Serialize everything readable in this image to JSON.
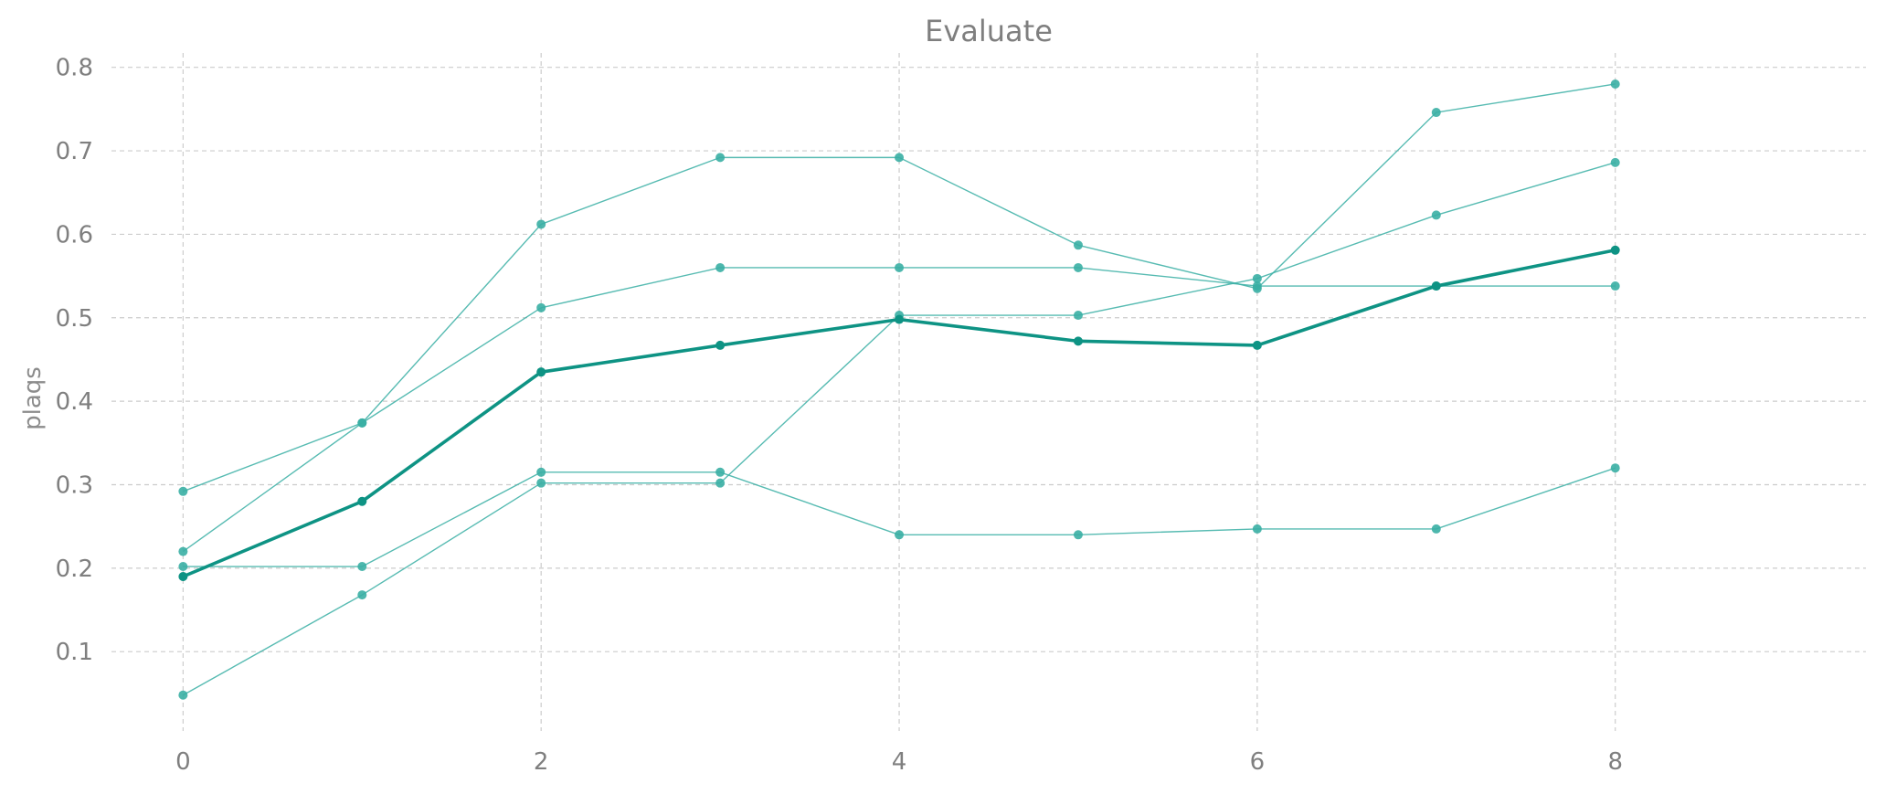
{
  "chart_data": {
    "type": "line",
    "title": "Evaluate",
    "xlabel": "",
    "ylabel": "plaqs",
    "x": [
      0,
      1,
      2,
      3,
      4,
      5,
      6,
      7,
      8
    ],
    "xlim": [
      -0.4,
      9.4
    ],
    "ylim": [
      0.005,
      0.815
    ],
    "xticks": [
      0,
      2,
      4,
      6,
      8
    ],
    "yticks": [
      0.1,
      0.2,
      0.3,
      0.4,
      0.5,
      0.6,
      0.7,
      0.8
    ],
    "xtick_labels": [
      "0",
      "2",
      "4",
      "6",
      "8"
    ],
    "ytick_labels": [
      "0.1",
      "0.2",
      "0.3",
      "0.4",
      "0.5",
      "0.6",
      "0.7",
      "0.8"
    ],
    "grid": true,
    "legend": "none",
    "colors": {
      "thin_series": "#3aafa4",
      "mean_series": "#0e9384",
      "grid": "#cccccc",
      "text": "#7f7f7f"
    },
    "series": [
      {
        "values": [
          0.292,
          0.374,
          0.612,
          0.692,
          0.692,
          0.587,
          0.535,
          0.746,
          0.78
        ],
        "style": "thin"
      },
      {
        "values": [
          0.22,
          0.374,
          0.512,
          0.56,
          0.56,
          0.56,
          0.538,
          0.538,
          0.538
        ],
        "style": "thin"
      },
      {
        "values": [
          0.202,
          0.202,
          0.315,
          0.315,
          0.24,
          0.24,
          0.247,
          0.247,
          0.32
        ],
        "style": "thin"
      },
      {
        "values": [
          0.048,
          0.168,
          0.302,
          0.302,
          0.503,
          0.503,
          0.547,
          0.623,
          0.686
        ],
        "style": "thin"
      },
      {
        "values": [
          0.19,
          0.28,
          0.435,
          0.467,
          0.498,
          0.472,
          0.467,
          0.538,
          0.581
        ],
        "style": "bold"
      }
    ]
  }
}
